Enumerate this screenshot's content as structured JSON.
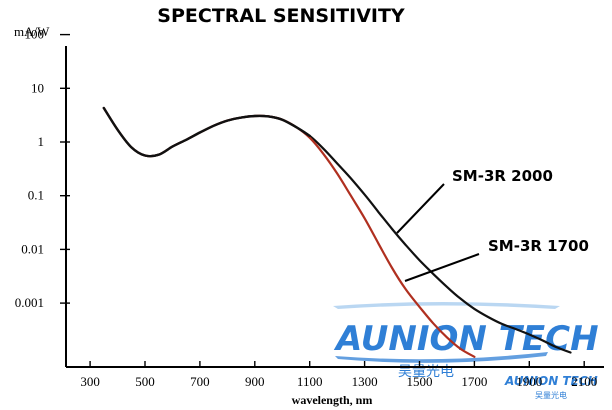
{
  "chart_data": {
    "type": "line",
    "title": "SPECTRAL SENSITIVITY",
    "xlabel": "wavelength, nm",
    "ylabel": "mA/W",
    "yscale": "log",
    "xlim": [
      200,
      2150
    ],
    "ylim": [
      0.0001,
      120
    ],
    "xticks": [
      300,
      500,
      700,
      900,
      1100,
      1300,
      1500,
      1700,
      1900,
      2100
    ],
    "xtick_labels": [
      "300",
      "500",
      "700",
      "900",
      "1100",
      "1300",
      "1500",
      "1700",
      "1900",
      "2100"
    ],
    "yticks": [
      100,
      10,
      1,
      0.1,
      0.01,
      0.001
    ],
    "ytick_labels": [
      "100",
      "10",
      "1",
      "0.1",
      "0.01",
      "0.001"
    ],
    "grid": false,
    "series": [
      {
        "name": "SM-3R 2000",
        "color": "#111111",
        "x": [
          350,
          400,
          450,
          500,
          550,
          600,
          650,
          700,
          750,
          800,
          850,
          900,
          950,
          1000,
          1050,
          1100,
          1150,
          1200,
          1250,
          1300,
          1350,
          1400,
          1450,
          1500,
          1550,
          1600,
          1650,
          1700,
          1750,
          1800,
          1850,
          1900,
          1950,
          2000,
          2050
        ],
        "values": [
          4.3,
          1.7,
          0.8,
          0.56,
          0.58,
          0.82,
          1.1,
          1.5,
          2.0,
          2.5,
          2.85,
          3.05,
          3.0,
          2.6,
          1.9,
          1.3,
          0.75,
          0.4,
          0.21,
          0.105,
          0.05,
          0.024,
          0.012,
          0.0063,
          0.0035,
          0.002,
          0.0012,
          0.00078,
          0.00055,
          0.00041,
          0.00033,
          0.00026,
          0.0002,
          0.00015,
          0.00012
        ]
      },
      {
        "name": "SM-3R 1700",
        "color": "#b03020",
        "x": [
          350,
          400,
          450,
          500,
          550,
          600,
          650,
          700,
          750,
          800,
          850,
          900,
          950,
          1000,
          1050,
          1100,
          1150,
          1200,
          1250,
          1300,
          1350,
          1400,
          1450,
          1500,
          1550,
          1600,
          1650,
          1700
        ],
        "values": [
          4.3,
          1.7,
          0.8,
          0.56,
          0.58,
          0.82,
          1.1,
          1.5,
          2.0,
          2.5,
          2.85,
          3.05,
          3.0,
          2.6,
          1.9,
          1.2,
          0.6,
          0.26,
          0.1,
          0.038,
          0.013,
          0.0045,
          0.0018,
          0.00085,
          0.00042,
          0.00023,
          0.00014,
          0.0001
        ]
      }
    ],
    "annotations": [
      {
        "text": "SM-3R 2000",
        "series": 0
      },
      {
        "text": "SM-3R 1700",
        "series": 1
      }
    ]
  },
  "watermark": {
    "main": "AUNION TECH",
    "sub": "吴量光电",
    "color": "#2f7fd6"
  }
}
